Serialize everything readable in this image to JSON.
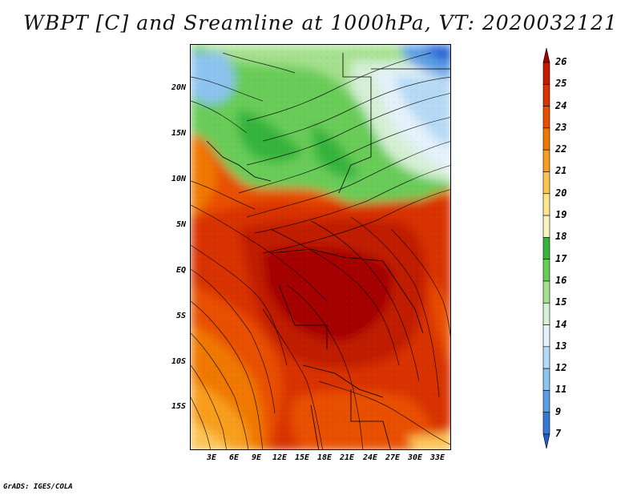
{
  "title": "WBPT [C] and Sreamline at 1000hPa, VT: 2020032121",
  "credit": "GrADS: IGES/COLA",
  "lat_labels": [
    "20N",
    "15N",
    "10N",
    "5N",
    "EQ",
    "5S",
    "10S",
    "15S"
  ],
  "lon_labels": [
    "3E",
    "6E",
    "9E",
    "12E",
    "15E",
    "18E",
    "21E",
    "24E",
    "27E",
    "30E",
    "33E"
  ],
  "colorbar": {
    "labels": [
      "26",
      "25",
      "24",
      "23",
      "22",
      "21",
      "20",
      "19",
      "18",
      "17",
      "16",
      "15",
      "14",
      "13",
      "12",
      "11",
      "9",
      "7"
    ],
    "colors": [
      "#a50000",
      "#c01a00",
      "#d83200",
      "#e85000",
      "#f07800",
      "#f89e1e",
      "#fbc452",
      "#fde590",
      "#f8f4c0",
      "#36b43c",
      "#69cc59",
      "#a6e08e",
      "#d5f0d5",
      "#e5f2fb",
      "#b6daf5",
      "#8cc3ef",
      "#5c9de4",
      "#3a78d8",
      "#1f5fcf"
    ]
  }
}
